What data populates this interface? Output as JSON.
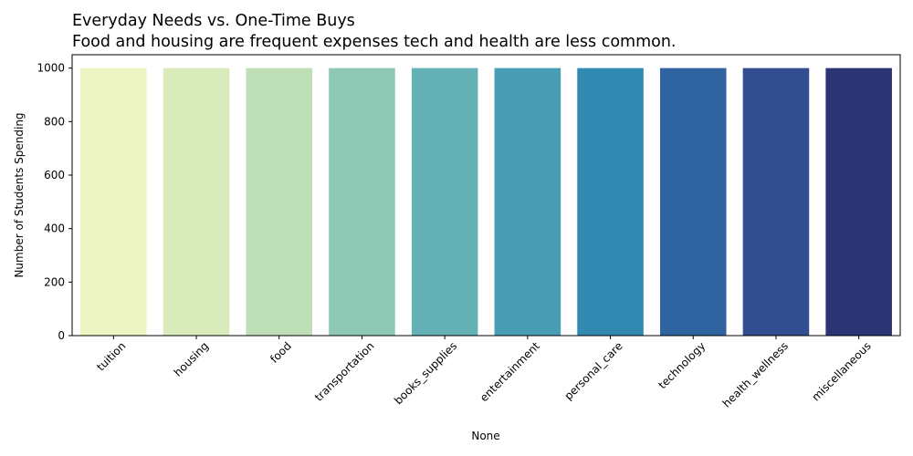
{
  "chart_data": {
    "type": "bar",
    "title": "Everyday Needs vs. One-Time Buys",
    "subtitle": "Food and housing are frequent expenses tech and health are less common.",
    "xlabel": "None",
    "ylabel": "Number of Students Spending",
    "categories": [
      "tuition",
      "housing",
      "food",
      "transportation",
      "books_supplies",
      "entertainment",
      "personal_care",
      "technology",
      "health_wellness",
      "miscellaneous"
    ],
    "values": [
      1000,
      1000,
      1000,
      1000,
      1000,
      1000,
      1000,
      1000,
      1000,
      1000
    ],
    "colors": [
      "#edf6c3",
      "#d9ebba",
      "#bfdfb9",
      "#8fc7b5",
      "#64b2b5",
      "#489db4",
      "#3188b0",
      "#2f64a0",
      "#324d90",
      "#2b3574"
    ],
    "ylim": [
      0,
      1050
    ],
    "yticks": [
      0,
      200,
      400,
      600,
      800,
      1000
    ],
    "grid": false,
    "legend": "none"
  }
}
